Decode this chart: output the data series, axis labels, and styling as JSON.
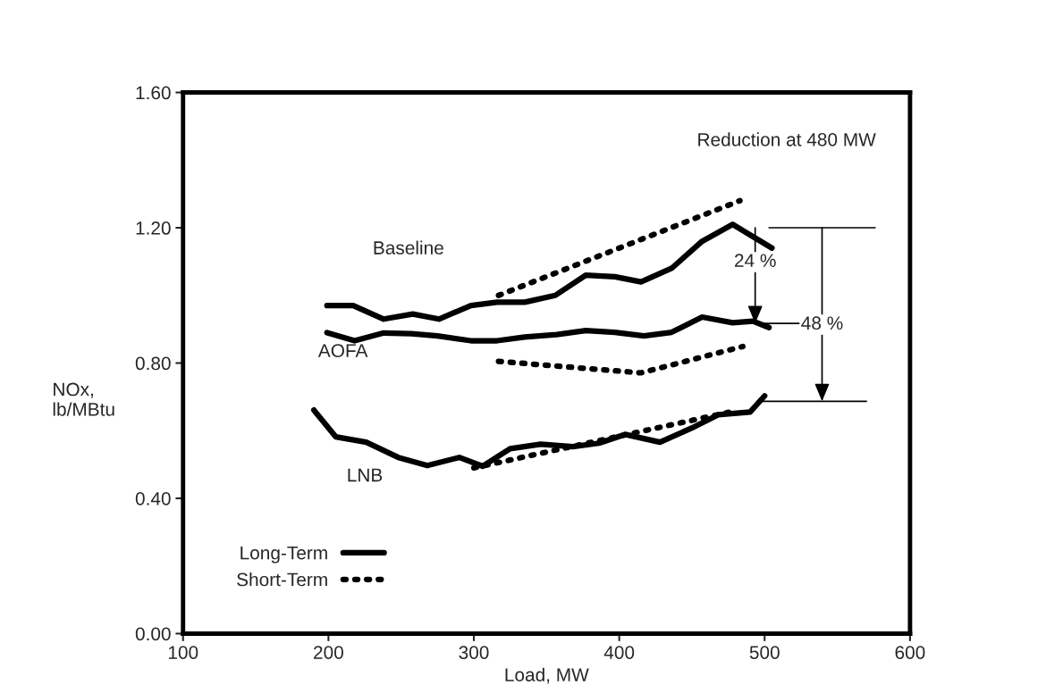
{
  "chart_data": {
    "type": "line",
    "xlabel": "Load, MW",
    "ylabel": "NOx,\nlb/MBtu",
    "xlim": [
      100,
      600
    ],
    "xticks": [
      100,
      200,
      300,
      400,
      500,
      600
    ],
    "ylim": [
      0,
      1.6
    ],
    "yticks": [
      {
        "value": 0,
        "label": "0.00"
      },
      {
        "value": 0.4,
        "label": "0.40"
      },
      {
        "value": 0.8,
        "label": "0.80"
      },
      {
        "value": 1.2,
        "label": "1.20"
      },
      {
        "value": 1.6,
        "label": "1.60"
      }
    ],
    "grid": false,
    "legend": "bottom left",
    "marker": "none",
    "series": [
      {
        "name": "Long-Term",
        "color": "#000000",
        "line_style": "solid",
        "x": [
          199,
          217,
          238,
          258,
          276,
          298,
          316,
          335,
          356,
          377,
          397,
          415,
          436,
          457,
          478,
          505
        ],
        "values": [
          0.97,
          0.97,
          0.93,
          0.945,
          0.93,
          0.97,
          0.98,
          0.98,
          1.0,
          1.06,
          1.055,
          1.04,
          1.08,
          1.16,
          1.21,
          1.14
        ]
      },
      {
        "name": "Short-Term",
        "color": "#000000",
        "line_style": "dotted",
        "x": [
          317,
          483
        ],
        "values": [
          1.0,
          1.28
        ]
      },
      {
        "color": "#000000",
        "line_style": "solid",
        "x": [
          199,
          218,
          238,
          257,
          275,
          298,
          316,
          335,
          357,
          377,
          397,
          417,
          436,
          457,
          478,
          492,
          503
        ],
        "values": [
          0.89,
          0.866,
          0.889,
          0.887,
          0.88,
          0.866,
          0.866,
          0.877,
          0.884,
          0.896,
          0.891,
          0.88,
          0.891,
          0.936,
          0.919,
          0.924,
          0.905
        ]
      },
      {
        "color": "#000000",
        "line_style": "dotted",
        "x": [
          317,
          415,
          485
        ],
        "values": [
          0.805,
          0.771,
          0.849
        ]
      },
      {
        "color": "#000000",
        "line_style": "solid",
        "x": [
          190,
          205,
          226,
          248,
          268,
          290,
          306,
          325,
          346,
          368,
          386,
          404,
          428,
          450,
          468,
          490,
          500
        ],
        "values": [
          0.661,
          0.582,
          0.566,
          0.521,
          0.497,
          0.521,
          0.495,
          0.547,
          0.56,
          0.553,
          0.563,
          0.589,
          0.566,
          0.608,
          0.647,
          0.655,
          0.703
        ]
      },
      {
        "color": "#000000",
        "line_style": "dotted",
        "x": [
          300,
          476
        ],
        "values": [
          0.49,
          0.655
        ]
      },
      {
        "color": "#000000",
        "line_style": "solid",
        "x": [
          503,
          576
        ],
        "values": [
          1.2,
          1.2
        ]
      },
      {
        "color": "#000000",
        "line_style": "solid",
        "x": [
          480,
          525
        ],
        "values": [
          0.917,
          0.917
        ]
      },
      {
        "color": "#000000",
        "line_style": "solid",
        "x": [
          495,
          570
        ],
        "values": [
          0.687,
          0.687
        ]
      }
    ],
    "annotations": [
      "Reduction at 480 MW",
      "Baseline",
      "AOFA",
      "LNB",
      "24 %",
      "48 %"
    ]
  }
}
